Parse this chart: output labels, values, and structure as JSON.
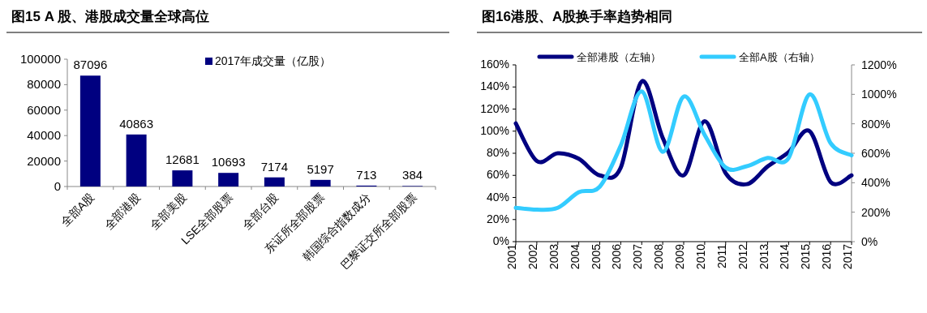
{
  "chart_data": [
    {
      "type": "bar",
      "title": "图15 A 股、港股成交量全球高位",
      "categories": [
        "全部A股",
        "全部港股",
        "全部美股",
        "LSE全部股票",
        "全部台股",
        "东证所全部股票",
        "韩国综合指数成分",
        "巴黎证交所全部股票"
      ],
      "series": [
        {
          "name": "2017年成交量（亿股）",
          "color": "#000080",
          "values": [
            87096,
            40863,
            12681,
            10693,
            7174,
            5197,
            713,
            384
          ]
        }
      ],
      "ylim": [
        0,
        100000
      ],
      "yticks": [
        0,
        20000,
        40000,
        60000,
        80000,
        100000
      ],
      "data_labels": true,
      "legend": "top right"
    },
    {
      "type": "line",
      "title": "图16港股、A股换手率趋势相同",
      "x": [
        2001,
        2002,
        2003,
        2004,
        2005,
        2006,
        2007,
        2008,
        2009,
        2010,
        2011,
        2012,
        2013,
        2014,
        2015,
        2016,
        2017
      ],
      "series": [
        {
          "name": "全部港股（左轴）",
          "color": "#000080",
          "values": [
            107,
            73,
            80,
            75,
            60,
            67,
            145,
            94,
            60,
            109,
            62,
            52,
            68,
            81,
            100,
            54,
            60
          ]
        },
        {
          "name": "全部A股（右轴）",
          "color": "#33ccff",
          "axis": "y2",
          "values": [
            230,
            217,
            230,
            336,
            373,
            652,
            1020,
            610,
            985,
            724,
            503,
            512,
            568,
            568,
            1000,
            669,
            586
          ]
        }
      ],
      "xlim": [
        2001,
        2017
      ],
      "xticks": [
        2001,
        2002,
        2003,
        2004,
        2005,
        2006,
        2007,
        2008,
        2009,
        2010,
        2011,
        2012,
        2013,
        2014,
        2015,
        2016,
        2017
      ],
      "ylim": [
        0,
        160
      ],
      "yticks": [
        {
          "value": 0,
          "label": "0%"
        },
        {
          "value": 20,
          "label": "20%"
        },
        {
          "value": 40,
          "label": "40%"
        },
        {
          "value": 60,
          "label": "60%"
        },
        {
          "value": 80,
          "label": "80%"
        },
        {
          "value": 100,
          "label": "100%"
        },
        {
          "value": 120,
          "label": "120%"
        },
        {
          "value": 140,
          "label": "140%"
        },
        {
          "value": 160,
          "label": "160%"
        }
      ],
      "y2lim": [
        0,
        1200
      ],
      "y2ticks": [
        {
          "value": 0,
          "label": "0%"
        },
        {
          "value": 200,
          "label": "200%"
        },
        {
          "value": 400,
          "label": "400%"
        },
        {
          "value": 600,
          "label": "600%"
        },
        {
          "value": 800,
          "label": "800%"
        },
        {
          "value": 1000,
          "label": "1000%"
        },
        {
          "value": 1200,
          "label": "1200%"
        }
      ],
      "legend": "top",
      "line_style": "solid",
      "marker": "none"
    }
  ]
}
